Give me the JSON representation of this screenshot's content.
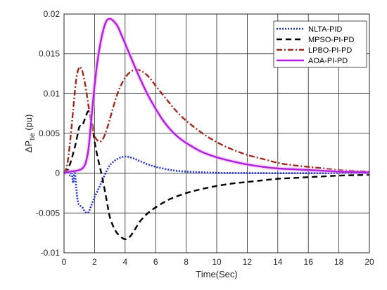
{
  "chart_data": {
    "type": "line",
    "xlabel": "Time(Sec)",
    "ylabel": {
      "main": "ΔP",
      "sub": "tie",
      "unit": " (pu)"
    },
    "xlim": [
      0,
      20
    ],
    "ylim": [
      -0.01,
      0.02
    ],
    "xticks": [
      0,
      2,
      4,
      6,
      8,
      10,
      12,
      14,
      16,
      18,
      20
    ],
    "xtick_labels": [
      "0",
      "2",
      "4",
      "6",
      "8",
      "10",
      "12",
      "14",
      "16",
      "18",
      "20"
    ],
    "yticks": [
      -0.01,
      -0.005,
      0,
      0.005,
      0.01,
      0.015,
      0.02
    ],
    "ytick_labels": [
      "-0.01",
      "-0.005",
      "0",
      "0.005",
      "0.01",
      "0.015",
      "0.02"
    ],
    "grid": true,
    "legend_position": "top-right",
    "series": [
      {
        "name": "NLTA-PID",
        "color": "#1f2fd6",
        "style": "dotted",
        "x": [
          0,
          0.1,
          0.2,
          0.3,
          0.4,
          0.5,
          0.6,
          0.7,
          0.8,
          0.9,
          1.0,
          1.2,
          1.4,
          1.6,
          1.8,
          2.0,
          2.3,
          2.6,
          3.0,
          3.5,
          4.0,
          4.5,
          5.0,
          5.5,
          6.0,
          7.0,
          8.0,
          10.0,
          12.0,
          14.0,
          16.0,
          18.0,
          20.0
        ],
        "y": [
          0,
          0.0002,
          0.0005,
          0.0003,
          -0.0003,
          0.0001,
          -0.0012,
          0.0002,
          -0.0018,
          -0.0035,
          -0.004,
          -0.0043,
          -0.0049,
          -0.0049,
          -0.004,
          -0.003,
          -0.0018,
          -0.0005,
          0.001,
          0.0018,
          0.0021,
          0.0019,
          0.0015,
          0.0011,
          0.0008,
          0.0004,
          0.0002,
          5e-05,
          2e-05,
          0.0,
          0.0,
          0.0,
          0.0
        ]
      },
      {
        "name": "MPSO-PI-PD",
        "color": "#000000",
        "style": "dashed",
        "x": [
          0,
          0.2,
          0.4,
          0.6,
          0.8,
          1.0,
          1.2,
          1.4,
          1.6,
          1.8,
          2.0,
          2.2,
          2.5,
          2.8,
          3.0,
          3.3,
          3.6,
          4.0,
          4.3,
          4.6,
          5.0,
          5.5,
          6.0,
          6.5,
          7.0,
          8.0,
          9.0,
          10.0,
          11.0,
          12.0,
          13.0,
          14.0,
          15.0,
          16.0,
          17.0,
          18.0,
          19.0,
          20.0
        ],
        "y": [
          0,
          0.0004,
          0.0012,
          0.0025,
          0.004,
          0.0058,
          0.006,
          0.007,
          0.0078,
          0.0068,
          0.004,
          0.002,
          -0.0005,
          -0.0035,
          -0.0055,
          -0.007,
          -0.0078,
          -0.0083,
          -0.008,
          -0.0072,
          -0.006,
          -0.005,
          -0.0043,
          -0.0037,
          -0.0032,
          -0.0025,
          -0.002,
          -0.0016,
          -0.0013,
          -0.0011,
          -0.0009,
          -0.0007,
          -0.0006,
          -0.0005,
          -0.0004,
          -0.0003,
          -0.00025,
          -0.0002
        ]
      },
      {
        "name": "LPBO-PI-PD",
        "color": "#a0291c",
        "style": "dashdot",
        "x": [
          0,
          0.2,
          0.4,
          0.6,
          0.8,
          1.0,
          1.2,
          1.4,
          1.6,
          1.8,
          2.0,
          2.2,
          2.4,
          2.6,
          2.8,
          3.0,
          3.3,
          3.6,
          4.0,
          4.4,
          4.8,
          5.2,
          5.6,
          6.0,
          6.5,
          7.0,
          7.5,
          8.0,
          9.0,
          10.0,
          11.0,
          12.0,
          13.0,
          14.0,
          15.0,
          16.0,
          17.0,
          18.0,
          19.0,
          20.0
        ],
        "y": [
          0,
          0.001,
          0.004,
          0.008,
          0.0118,
          0.0133,
          0.0128,
          0.011,
          0.0085,
          0.0062,
          0.0047,
          0.0041,
          0.004,
          0.0045,
          0.0055,
          0.0068,
          0.0088,
          0.0105,
          0.012,
          0.0128,
          0.013,
          0.0127,
          0.012,
          0.011,
          0.0098,
          0.0086,
          0.0075,
          0.0066,
          0.0051,
          0.0039,
          0.003,
          0.0023,
          0.0018,
          0.0013,
          0.001,
          0.0008,
          0.0006,
          0.0004,
          0.0003,
          0.0002
        ]
      },
      {
        "name": "AOA-PI-PD",
        "color": "#b01ee0",
        "style": "solid",
        "x": [
          0,
          0.4,
          0.8,
          1.0,
          1.2,
          1.4,
          1.6,
          1.8,
          2.0,
          2.2,
          2.4,
          2.6,
          2.8,
          3.0,
          3.2,
          3.5,
          3.8,
          4.0,
          4.5,
          5.0,
          5.5,
          6.0,
          6.5,
          7.0,
          7.5,
          8.0,
          9.0,
          10.0,
          11.0,
          12.0,
          13.0,
          14.0,
          15.0,
          16.0,
          17.0,
          18.0,
          19.0,
          20.0
        ],
        "y": [
          0,
          0.0002,
          0.0003,
          0.0004,
          0.0006,
          0.0012,
          0.003,
          0.007,
          0.011,
          0.0142,
          0.0165,
          0.0182,
          0.0192,
          0.0194,
          0.0192,
          0.0185,
          0.0172,
          0.0163,
          0.014,
          0.0118,
          0.0098,
          0.0081,
          0.0066,
          0.0054,
          0.0045,
          0.0038,
          0.0027,
          0.002,
          0.0015,
          0.0011,
          0.0008,
          0.0006,
          0.0005,
          0.0004,
          0.0003,
          0.0002,
          0.00015,
          0.0001
        ]
      }
    ]
  }
}
